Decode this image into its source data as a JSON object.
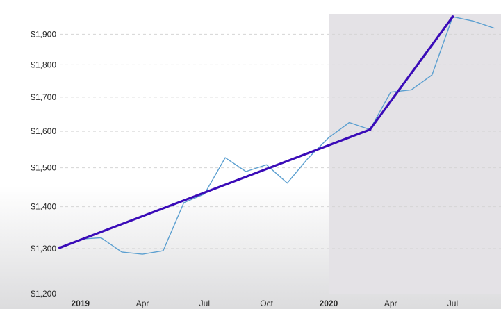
{
  "chart_data": {
    "type": "line",
    "xlabel": "",
    "ylabel": "",
    "y_scale": "log",
    "ylim": [
      1200,
      1970
    ],
    "xlim": [
      "2018-12",
      "2020-09"
    ],
    "grid": "horizontal dashed",
    "y_ticks": [
      {
        "value": 1200,
        "label": "$1,200"
      },
      {
        "value": 1300,
        "label": "$1,300"
      },
      {
        "value": 1400,
        "label": "$1,400"
      },
      {
        "value": 1500,
        "label": "$1,500"
      },
      {
        "value": 1600,
        "label": "$1,600"
      },
      {
        "value": 1700,
        "label": "$1,700"
      },
      {
        "value": 1800,
        "label": "$1,800"
      },
      {
        "value": 1900,
        "label": "$1,900"
      }
    ],
    "x_ticks": [
      {
        "date": "2019-01",
        "label": "2019",
        "year": true
      },
      {
        "date": "2019-04",
        "label": "Apr",
        "year": false
      },
      {
        "date": "2019-07",
        "label": "Jul",
        "year": false
      },
      {
        "date": "2019-10",
        "label": "Oct",
        "year": false
      },
      {
        "date": "2020-01",
        "label": "2020",
        "year": true
      },
      {
        "date": "2020-04",
        "label": "Apr",
        "year": false
      },
      {
        "date": "2020-07",
        "label": "Jul",
        "year": false
      }
    ],
    "shaded_region": {
      "start": "2020-01",
      "end": "2020-09",
      "color": "#e4e2e6"
    },
    "series": [
      {
        "style": "thin",
        "color": "#5b9fd0",
        "points": [
          [
            "2018-12",
            1300
          ],
          [
            "2019-01",
            1322
          ],
          [
            "2019-02",
            1325
          ],
          [
            "2019-03",
            1292
          ],
          [
            "2019-04",
            1287
          ],
          [
            "2019-05",
            1295
          ],
          [
            "2019-06",
            1410
          ],
          [
            "2019-07",
            1432
          ],
          [
            "2019-08",
            1527
          ],
          [
            "2019-09",
            1490
          ],
          [
            "2019-10",
            1508
          ],
          [
            "2019-11",
            1460
          ],
          [
            "2019-12",
            1525
          ],
          [
            "2020-01",
            1582
          ],
          [
            "2020-02",
            1625
          ],
          [
            "2020-03",
            1605
          ],
          [
            "2020-04",
            1715
          ],
          [
            "2020-05",
            1722
          ],
          [
            "2020-06",
            1768
          ],
          [
            "2020-07",
            1960
          ],
          [
            "2020-08",
            1945
          ],
          [
            "2020-09",
            1921
          ]
        ]
      },
      {
        "style": "trend",
        "color": "#3a0bb8",
        "points": [
          [
            "2018-12",
            1302
          ],
          [
            "2020-03",
            1605
          ],
          [
            "2020-07",
            1960
          ]
        ]
      }
    ]
  }
}
